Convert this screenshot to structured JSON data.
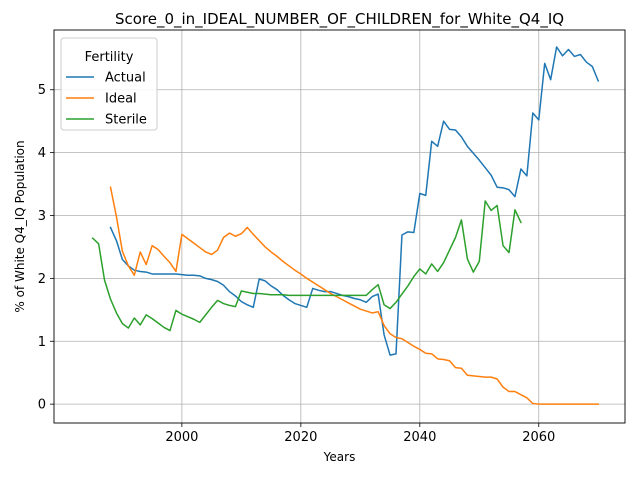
{
  "chart_data": {
    "type": "line",
    "title": "Score_0_in_IDEAL_NUMBER_OF_CHILDREN_for_White_Q4_IQ",
    "xlabel": "Years",
    "ylabel": "% of White Q4_IQ Population",
    "xlim": [
      1978.5,
      2074.5
    ],
    "ylim": [
      -0.3,
      5.95
    ],
    "xticks": [
      2000,
      2020,
      2040,
      2060
    ],
    "yticks": [
      0,
      1,
      2,
      3,
      4,
      5
    ],
    "grid": true,
    "legend": {
      "title": "Fertility",
      "position": "upper-left"
    },
    "series": [
      {
        "name": "Actual",
        "color": "#1f77b4",
        "x": [
          1988,
          1989,
          1990,
          1991,
          1992,
          1993,
          1994,
          1995,
          1996,
          1997,
          1998,
          1999,
          2000,
          2001,
          2002,
          2003,
          2004,
          2005,
          2006,
          2007,
          2008,
          2009,
          2010,
          2011,
          2012,
          2013,
          2014,
          2015,
          2016,
          2017,
          2018,
          2019,
          2020,
          2021,
          2022,
          2023,
          2024,
          2025,
          2026,
          2027,
          2028,
          2029,
          2030,
          2031,
          2032,
          2033,
          2034,
          2035,
          2036,
          2037,
          2038,
          2039,
          2040,
          2041,
          2042,
          2043,
          2044,
          2045,
          2046,
          2047,
          2048,
          2049,
          2050,
          2051,
          2052,
          2053,
          2054,
          2055,
          2056,
          2057,
          2058,
          2059,
          2060,
          2061,
          2062,
          2063,
          2064,
          2065,
          2066,
          2067,
          2068,
          2069,
          2070
        ],
        "y": [
          2.81,
          2.6,
          2.3,
          2.2,
          2.13,
          2.11,
          2.1,
          2.07,
          2.07,
          2.07,
          2.07,
          2.07,
          2.06,
          2.05,
          2.05,
          2.04,
          2.0,
          1.98,
          1.95,
          1.89,
          1.79,
          1.72,
          1.63,
          1.58,
          1.54,
          1.99,
          1.96,
          1.88,
          1.82,
          1.73,
          1.66,
          1.6,
          1.57,
          1.54,
          1.84,
          1.81,
          1.79,
          1.79,
          1.76,
          1.73,
          1.71,
          1.68,
          1.66,
          1.62,
          1.71,
          1.75,
          1.1,
          0.78,
          0.8,
          2.69,
          2.74,
          2.73,
          3.35,
          3.32,
          4.18,
          4.1,
          4.5,
          4.37,
          4.36,
          4.25,
          4.1,
          3.99,
          3.88,
          3.76,
          3.64,
          3.45,
          3.44,
          3.41,
          3.3,
          3.74,
          3.63,
          4.63,
          4.52,
          5.42,
          5.16,
          5.68,
          5.54,
          5.64,
          5.53,
          5.56,
          5.44,
          5.37,
          5.14
        ]
      },
      {
        "name": "Ideal",
        "color": "#ff7f0e",
        "x": [
          1988,
          1989,
          1990,
          1991,
          1992,
          1993,
          1994,
          1995,
          1996,
          1997,
          1998,
          1999,
          2000,
          2001,
          2002,
          2003,
          2004,
          2005,
          2006,
          2007,
          2008,
          2009,
          2010,
          2011,
          2012,
          2013,
          2014,
          2015,
          2016,
          2017,
          2018,
          2019,
          2020,
          2021,
          2022,
          2023,
          2024,
          2025,
          2026,
          2027,
          2028,
          2029,
          2030,
          2031,
          2032,
          2033,
          2034,
          2035,
          2036,
          2037,
          2038,
          2039,
          2040,
          2041,
          2042,
          2043,
          2044,
          2045,
          2046,
          2047,
          2048,
          2049,
          2050,
          2051,
          2052,
          2053,
          2054,
          2055,
          2056,
          2057,
          2058,
          2059,
          2060,
          2061,
          2062,
          2063,
          2064,
          2065,
          2066,
          2067,
          2068,
          2069,
          2070
        ],
        "y": [
          3.45,
          2.98,
          2.43,
          2.2,
          2.05,
          2.42,
          2.22,
          2.52,
          2.46,
          2.35,
          2.25,
          2.11,
          2.7,
          2.63,
          2.56,
          2.49,
          2.42,
          2.38,
          2.45,
          2.65,
          2.72,
          2.67,
          2.71,
          2.81,
          2.7,
          2.6,
          2.5,
          2.42,
          2.35,
          2.27,
          2.2,
          2.13,
          2.07,
          2.0,
          1.94,
          1.88,
          1.82,
          1.76,
          1.71,
          1.66,
          1.61,
          1.56,
          1.51,
          1.48,
          1.45,
          1.47,
          1.25,
          1.12,
          1.06,
          1.04,
          0.98,
          0.92,
          0.87,
          0.81,
          0.8,
          0.72,
          0.71,
          0.69,
          0.58,
          0.57,
          0.46,
          0.45,
          0.44,
          0.43,
          0.43,
          0.4,
          0.27,
          0.2,
          0.2,
          0.15,
          0.1,
          0.01,
          0.0,
          0.0,
          0.0,
          0.0,
          0.0,
          0.0,
          0.0,
          0.0,
          0.0,
          0.0,
          0.0
        ]
      },
      {
        "name": "Sterile",
        "color": "#2ca02c",
        "x": [
          1985,
          1986,
          1987,
          1988,
          1989,
          1990,
          1991,
          1992,
          1993,
          1994,
          1995,
          1996,
          1997,
          1998,
          1999,
          2000,
          2001,
          2002,
          2003,
          2004,
          2005,
          2006,
          2007,
          2008,
          2009,
          2010,
          2011,
          2012,
          2013,
          2014,
          2015,
          2016,
          2017,
          2018,
          2019,
          2020,
          2021,
          2022,
          2023,
          2024,
          2025,
          2026,
          2027,
          2028,
          2029,
          2030,
          2031,
          2032,
          2033,
          2034,
          2035,
          2036,
          2037,
          2038,
          2039,
          2040,
          2041,
          2042,
          2043,
          2044,
          2045,
          2046,
          2047,
          2048,
          2049,
          2050,
          2051,
          2052,
          2053,
          2054,
          2055,
          2056,
          2057
        ],
        "y": [
          2.64,
          2.55,
          1.97,
          1.67,
          1.45,
          1.28,
          1.21,
          1.37,
          1.26,
          1.42,
          1.36,
          1.29,
          1.22,
          1.17,
          1.49,
          1.43,
          1.39,
          1.35,
          1.3,
          1.42,
          1.54,
          1.65,
          1.6,
          1.57,
          1.55,
          1.8,
          1.78,
          1.76,
          1.76,
          1.75,
          1.74,
          1.74,
          1.74,
          1.73,
          1.73,
          1.73,
          1.73,
          1.73,
          1.73,
          1.73,
          1.73,
          1.73,
          1.73,
          1.73,
          1.73,
          1.73,
          1.73,
          1.82,
          1.9,
          1.58,
          1.52,
          1.62,
          1.75,
          1.88,
          2.03,
          2.15,
          2.07,
          2.23,
          2.11,
          2.25,
          2.45,
          2.65,
          2.93,
          2.31,
          2.1,
          2.27,
          3.23,
          3.08,
          3.16,
          2.52,
          2.41,
          3.09,
          2.89
        ]
      }
    ]
  }
}
